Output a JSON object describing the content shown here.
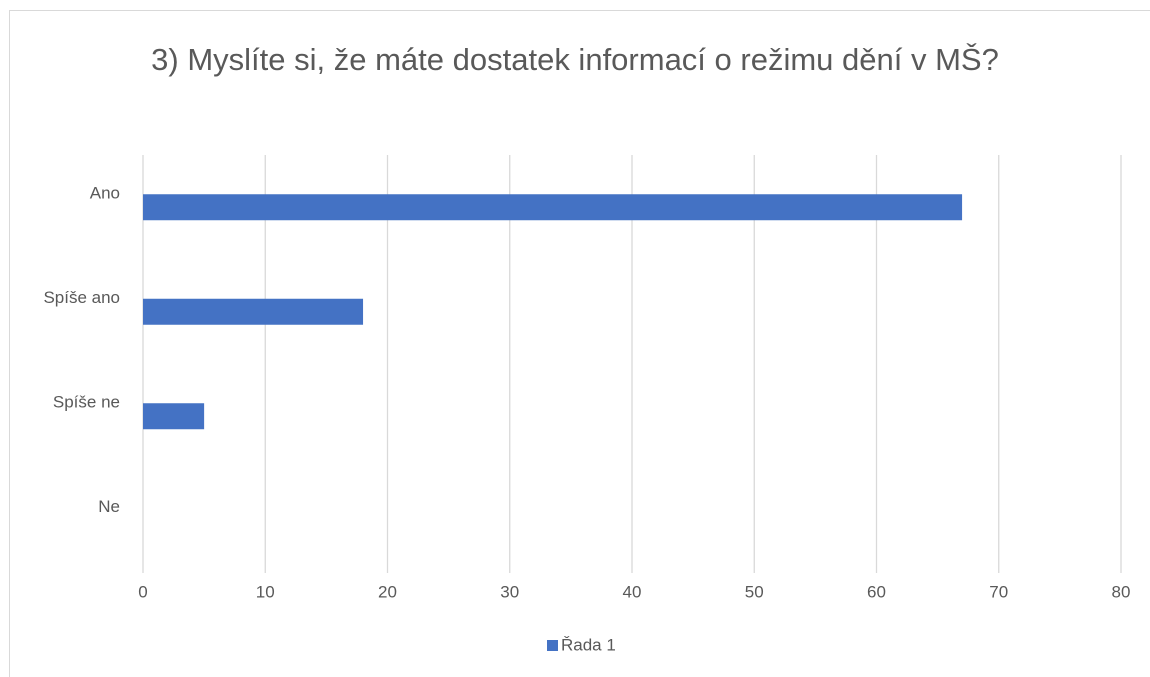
{
  "chart_data": {
    "type": "hbar",
    "title": "3) Myslíte si, že máte dostatek informací o režimu dění v MŠ?",
    "categories": [
      "Ano",
      "Spíše ano",
      "Spíše ne",
      "Ne"
    ],
    "series": [
      {
        "name": "Řada 1",
        "color": "#4472c4",
        "values": [
          67,
          18,
          5,
          0
        ]
      }
    ],
    "xlim": [
      0,
      80
    ],
    "xticks": [
      0,
      10,
      20,
      30,
      40,
      50,
      60,
      70,
      80
    ],
    "grid": true,
    "legend": "bottom"
  }
}
